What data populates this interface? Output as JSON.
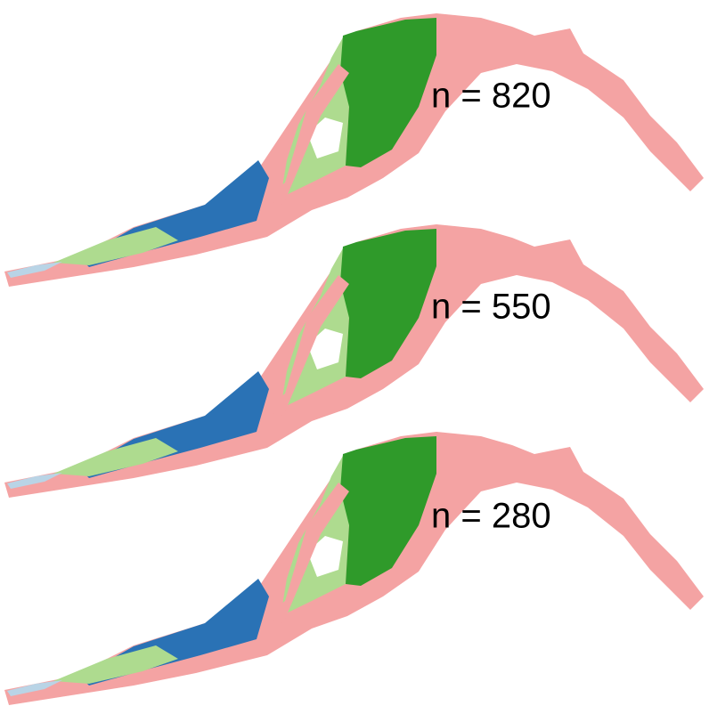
{
  "panels": [
    {
      "label": "n = 820"
    },
    {
      "label": "n = 550"
    },
    {
      "label": "n = 280"
    }
  ]
}
